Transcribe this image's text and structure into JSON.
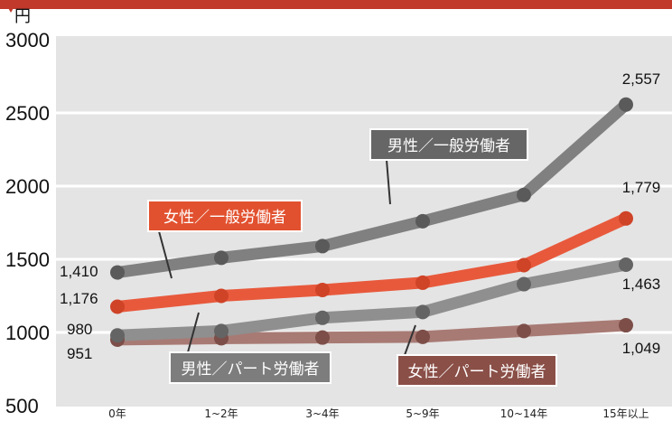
{
  "chart_data": {
    "type": "line",
    "title": "",
    "xlabel": "",
    "ylabel": "",
    "unit_label": "円",
    "categories": [
      "0年",
      "1~2年",
      "3~4年",
      "5~9年",
      "10~14年",
      "15年以上"
    ],
    "ylim": [
      500,
      3000
    ],
    "yticks": [
      "3000",
      "2500",
      "2000",
      "1500",
      "1000",
      "500"
    ],
    "yticks_values": [
      3000,
      2500,
      2000,
      1500,
      1000,
      500
    ],
    "grid": true,
    "series": [
      {
        "name": "男性／一般労働者",
        "color": "#808080",
        "marker_color": "#5a5a5a",
        "values": [
          1410,
          1510,
          1590,
          1760,
          1940,
          2557
        ],
        "first_label": "1,410",
        "last_label": "2,557"
      },
      {
        "name": "女性／一般労働者",
        "color": "#e8593c",
        "marker_color": "#cf4327",
        "values": [
          1176,
          1250,
          1290,
          1340,
          1460,
          1779
        ],
        "first_label": "1,176",
        "last_label": "1,779"
      },
      {
        "name": "男性／パート労働者",
        "color": "#8f8f8f",
        "marker_color": "#646464",
        "values": [
          980,
          1010,
          1100,
          1140,
          1330,
          1463
        ],
        "first_label": "980",
        "last_label": "1,463"
      },
      {
        "name": "女性／パート労働者",
        "color": "#a87a74",
        "marker_color": "#7d4e48",
        "values": [
          951,
          960,
          965,
          970,
          1010,
          1049
        ],
        "first_label": "951",
        "last_label": "1,049"
      }
    ]
  }
}
